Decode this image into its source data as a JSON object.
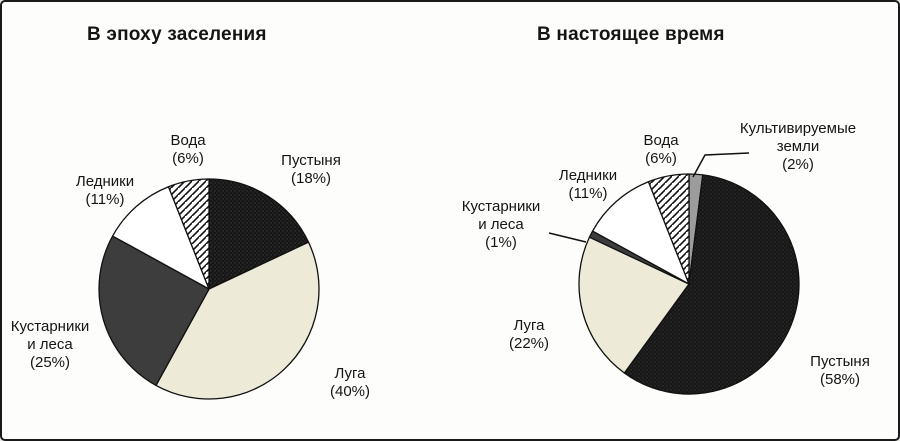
{
  "palette": {
    "black_slice": "#161616",
    "halftone_dot": "#3c3c3c",
    "dark_slice": "#3d3d3d",
    "light_slice": "#edead8",
    "gray_slice": "#9c9c9c",
    "white_slice": "#ffffff",
    "stroke": "#111111"
  },
  "chart_data": [
    {
      "type": "pie",
      "title": "В эпоху заселения",
      "direction": "clockwise",
      "start_angle_deg": 0,
      "legend_position": "around",
      "slices": [
        {
          "key": "pustynya",
          "label": "Пустыня",
          "value": 18,
          "style": "halftone-dark",
          "display": "Пустыня\n(18%)"
        },
        {
          "key": "luga",
          "label": "Луга",
          "value": 40,
          "style": "solid-light",
          "display": "Луга\n(40%)"
        },
        {
          "key": "kustarniki",
          "label": "Кустарники и леса",
          "value": 25,
          "style": "solid-dark",
          "display": "Кустарники\nи леса\n(25%)"
        },
        {
          "key": "ledniki",
          "label": "Ледники",
          "value": 11,
          "style": "white",
          "display": "Ледники\n(11%)"
        },
        {
          "key": "voda",
          "label": "Вода",
          "value": 6,
          "style": "diagonal-hatch",
          "display": "Вода\n(6%)"
        }
      ]
    },
    {
      "type": "pie",
      "title": "В настоящее время",
      "direction": "clockwise",
      "start_angle_deg": 0,
      "legend_position": "around",
      "slices": [
        {
          "key": "kultiv",
          "label": "Культивируемые земли",
          "value": 2,
          "style": "solid-gray",
          "display": "Культивируемые\nземли\n(2%)"
        },
        {
          "key": "pustynya",
          "label": "Пустыня",
          "value": 58,
          "style": "halftone-dark",
          "display": "Пустыня\n(58%)"
        },
        {
          "key": "luga",
          "label": "Луга",
          "value": 22,
          "style": "solid-light",
          "display": "Луга\n(22%)"
        },
        {
          "key": "kustarniki",
          "label": "Кустарники и леса",
          "value": 1,
          "style": "solid-dark",
          "display": "Кустарники\nи леса\n(1%)"
        },
        {
          "key": "ledniki",
          "label": "Ледники",
          "value": 11,
          "style": "white",
          "display": "Ледники\n(11%)"
        },
        {
          "key": "voda",
          "label": "Вода",
          "value": 6,
          "style": "diagonal-hatch",
          "display": "Вода\n(6%)"
        }
      ]
    }
  ]
}
